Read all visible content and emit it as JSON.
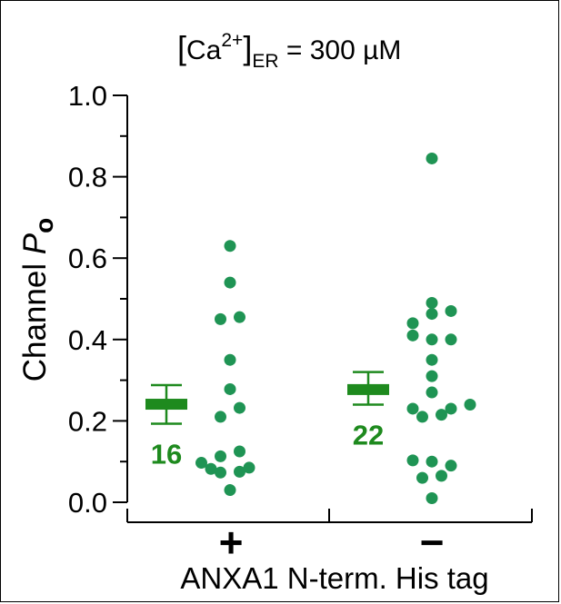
{
  "chart_data": {
    "type": "scatter",
    "title": {
      "open_bracket": "[",
      "ion": "Ca",
      "charge": "2+",
      "close_bracket": "]",
      "subscript": "ER",
      "rest": " = 300 µM"
    },
    "ylabel": {
      "prefix": "Channel ",
      "symbol": "P",
      "subscript": "o"
    },
    "xlabel": "ANXA1 N-term. His tag",
    "ylim": [
      0,
      1
    ],
    "yticks": [
      "0.0",
      "0.2",
      "0.4",
      "0.6",
      "0.8",
      "1.0"
    ],
    "grid": false,
    "legend": "none",
    "categories": [
      "+",
      "−"
    ],
    "series": [
      {
        "category": "+",
        "mean": 0.241,
        "sem_low": 0.193,
        "sem_high": 0.288,
        "n": "16",
        "points": [
          {
            "dx": 0,
            "y": 0.63
          },
          {
            "dx": 0,
            "y": 0.54
          },
          {
            "dx": -0.5,
            "y": 0.45
          },
          {
            "dx": 0.5,
            "y": 0.455
          },
          {
            "dx": 0,
            "y": 0.35
          },
          {
            "dx": 0,
            "y": 0.278
          },
          {
            "dx": -0.5,
            "y": 0.21
          },
          {
            "dx": 0.5,
            "y": 0.232
          },
          {
            "dx": -0.5,
            "y": 0.113
          },
          {
            "dx": 0.5,
            "y": 0.125
          },
          {
            "dx": -1.5,
            "y": 0.097
          },
          {
            "dx": -1,
            "y": 0.082
          },
          {
            "dx": -0.5,
            "y": 0.073
          },
          {
            "dx": 0.5,
            "y": 0.075
          },
          {
            "dx": 1,
            "y": 0.085
          },
          {
            "dx": 0,
            "y": 0.03
          }
        ]
      },
      {
        "category": "−",
        "mean": 0.277,
        "sem_low": 0.24,
        "sem_high": 0.32,
        "n": "22",
        "points": [
          {
            "dx": 0,
            "y": 0.845
          },
          {
            "dx": 0,
            "y": 0.49
          },
          {
            "dx": 0,
            "y": 0.463
          },
          {
            "dx": -1,
            "y": 0.44
          },
          {
            "dx": 1,
            "y": 0.47
          },
          {
            "dx": -1,
            "y": 0.41
          },
          {
            "dx": 0,
            "y": 0.4
          },
          {
            "dx": 1,
            "y": 0.4
          },
          {
            "dx": 0,
            "y": 0.35
          },
          {
            "dx": 0,
            "y": 0.31
          },
          {
            "dx": 0,
            "y": 0.27
          },
          {
            "dx": -1,
            "y": 0.23
          },
          {
            "dx": 1,
            "y": 0.23
          },
          {
            "dx": 2,
            "y": 0.24
          },
          {
            "dx": -0.5,
            "y": 0.21
          },
          {
            "dx": 0.5,
            "y": 0.215
          },
          {
            "dx": -1,
            "y": 0.103
          },
          {
            "dx": 0,
            "y": 0.1
          },
          {
            "dx": 1,
            "y": 0.09
          },
          {
            "dx": -0.5,
            "y": 0.06
          },
          {
            "dx": 0.5,
            "y": 0.065
          },
          {
            "dx": 0,
            "y": 0.01
          }
        ]
      }
    ],
    "colors": {
      "summary": "#1e8a1e",
      "points": "#1f9454",
      "axis": "#000000"
    }
  }
}
